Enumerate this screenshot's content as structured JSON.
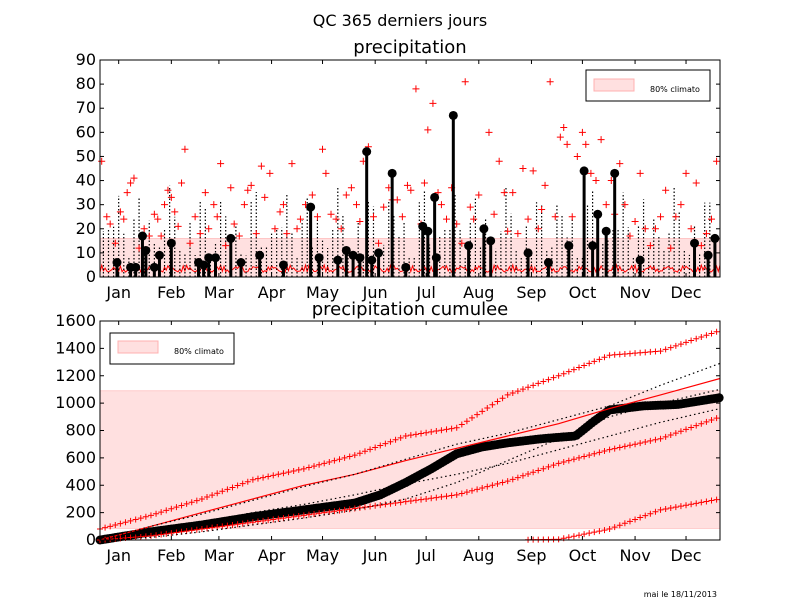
{
  "suptitle": "QC 365 derniers jours",
  "footer": "mai le 18/11/2013",
  "colors": {
    "climato_band": "#ffe0e0",
    "climato_edge": "#ffb0b0",
    "observed": "#000000",
    "climato": "#ff0000"
  },
  "chart_data": [
    {
      "type": "bar",
      "title": "precipitation",
      "xlabel": "",
      "ylabel": "",
      "xlim": [
        0,
        365
      ],
      "ylim": [
        0,
        90
      ],
      "yticks": [
        0,
        10,
        20,
        30,
        40,
        50,
        60,
        70,
        80,
        90
      ],
      "month_labels": [
        "Jan",
        "Feb",
        "Mar",
        "Apr",
        "May",
        "Jun",
        "Jul",
        "Aug",
        "Sep",
        "Oct",
        "Nov",
        "Dec"
      ],
      "month_days": [
        11,
        42,
        70,
        101,
        131,
        162,
        192,
        223,
        254,
        284,
        315,
        345
      ],
      "legend": {
        "label": "80% climato",
        "position": "upper-right"
      },
      "band_80pct": [
        0,
        16
      ],
      "series": [
        {
          "marker": "circle",
          "x": [
            10,
            18,
            21,
            25,
            27,
            32,
            35,
            42,
            58,
            61,
            64,
            68,
            77,
            83,
            94,
            108,
            124,
            129,
            140,
            145,
            149,
            153,
            157,
            160,
            164,
            172,
            180,
            190,
            193,
            197,
            198,
            208,
            217,
            226,
            230,
            252,
            264,
            276,
            285,
            290,
            293,
            298,
            303,
            318,
            350,
            358,
            362
          ],
          "y": [
            6,
            4,
            4,
            17,
            11,
            4,
            9,
            14,
            6,
            5,
            8,
            8,
            16,
            6,
            9,
            5,
            29,
            8,
            7,
            11,
            9,
            8,
            52,
            7,
            10,
            43,
            4,
            21,
            19,
            33,
            8,
            67,
            13,
            20,
            15,
            10,
            6,
            13,
            44,
            13,
            26,
            19,
            43,
            7,
            14,
            9,
            16
          ]
        }
      ],
      "climato_pluses": [
        [
          1,
          48
        ],
        [
          4,
          25
        ],
        [
          6,
          22
        ],
        [
          9,
          14
        ],
        [
          12,
          27
        ],
        [
          14,
          24
        ],
        [
          16,
          35
        ],
        [
          18,
          39
        ],
        [
          20,
          41
        ],
        [
          23,
          12
        ],
        [
          26,
          20
        ],
        [
          29,
          17
        ],
        [
          32,
          26
        ],
        [
          34,
          24
        ],
        [
          36,
          17
        ],
        [
          38,
          30
        ],
        [
          40,
          36
        ],
        [
          42,
          33
        ],
        [
          44,
          27
        ],
        [
          46,
          21
        ],
        [
          48,
          39
        ],
        [
          50,
          53
        ],
        [
          53,
          14
        ],
        [
          56,
          25
        ],
        [
          59,
          18
        ],
        [
          62,
          35
        ],
        [
          64,
          20
        ],
        [
          67,
          30
        ],
        [
          69,
          25
        ],
        [
          71,
          47
        ],
        [
          74,
          13
        ],
        [
          77,
          37
        ],
        [
          79,
          22
        ],
        [
          82,
          17
        ],
        [
          85,
          30
        ],
        [
          87,
          36
        ],
        [
          89,
          38
        ],
        [
          92,
          18
        ],
        [
          95,
          46
        ],
        [
          97,
          33
        ],
        [
          100,
          43
        ],
        [
          103,
          20
        ],
        [
          106,
          27
        ],
        [
          108,
          30
        ],
        [
          110,
          18
        ],
        [
          113,
          47
        ],
        [
          116,
          20
        ],
        [
          118,
          24
        ],
        [
          121,
          30
        ],
        [
          125,
          34
        ],
        [
          128,
          25
        ],
        [
          131,
          53
        ],
        [
          133,
          43
        ],
        [
          136,
          26
        ],
        [
          139,
          24
        ],
        [
          142,
          20
        ],
        [
          145,
          34
        ],
        [
          148,
          37
        ],
        [
          151,
          30
        ],
        [
          153,
          23
        ],
        [
          155,
          48
        ],
        [
          158,
          54
        ],
        [
          161,
          25
        ],
        [
          164,
          14
        ],
        [
          167,
          29
        ],
        [
          170,
          37
        ],
        [
          172,
          32
        ],
        [
          175,
          32
        ],
        [
          178,
          25
        ],
        [
          181,
          38
        ],
        [
          183,
          36
        ],
        [
          186,
          78
        ],
        [
          189,
          22
        ],
        [
          191,
          39
        ],
        [
          193,
          61
        ],
        [
          196,
          72
        ],
        [
          199,
          35
        ],
        [
          201,
          30
        ],
        [
          204,
          24
        ],
        [
          207,
          37
        ],
        [
          210,
          22
        ],
        [
          213,
          14
        ],
        [
          215,
          81
        ],
        [
          218,
          29
        ],
        [
          220,
          24
        ],
        [
          223,
          34
        ],
        [
          226,
          20
        ],
        [
          229,
          60
        ],
        [
          232,
          26
        ],
        [
          235,
          48
        ],
        [
          238,
          35
        ],
        [
          240,
          19
        ],
        [
          243,
          35
        ],
        [
          246,
          18
        ],
        [
          249,
          45
        ],
        [
          252,
          24
        ],
        [
          255,
          44
        ],
        [
          258,
          20
        ],
        [
          260,
          28
        ],
        [
          262,
          38
        ],
        [
          265,
          81
        ],
        [
          268,
          25
        ],
        [
          271,
          58
        ],
        [
          273,
          62
        ],
        [
          275,
          55
        ],
        [
          278,
          25
        ],
        [
          281,
          50
        ],
        [
          284,
          60
        ],
        [
          286,
          55
        ],
        [
          289,
          43
        ],
        [
          292,
          40
        ],
        [
          295,
          57
        ],
        [
          298,
          30
        ],
        [
          301,
          40
        ],
        [
          303,
          26
        ],
        [
          306,
          47
        ],
        [
          309,
          30
        ],
        [
          312,
          17
        ],
        [
          315,
          23
        ],
        [
          318,
          43
        ],
        [
          321,
          20
        ],
        [
          324,
          13
        ],
        [
          327,
          20
        ],
        [
          330,
          25
        ],
        [
          333,
          36
        ],
        [
          336,
          12
        ],
        [
          339,
          25
        ],
        [
          342,
          30
        ],
        [
          345,
          43
        ],
        [
          348,
          20
        ],
        [
          351,
          39
        ],
        [
          354,
          13
        ],
        [
          357,
          18
        ],
        [
          360,
          24
        ],
        [
          363,
          48
        ]
      ]
    },
    {
      "type": "line",
      "title": "precipitation cumulee",
      "xlabel": "",
      "ylabel": "",
      "xlim": [
        0,
        365
      ],
      "ylim": [
        0,
        1600
      ],
      "yticks": [
        0,
        200,
        400,
        600,
        800,
        1000,
        1200,
        1400,
        1600
      ],
      "month_labels": [
        "Jan",
        "Feb",
        "Mar",
        "Apr",
        "May",
        "Jun",
        "Jul",
        "Aug",
        "Sep",
        "Oct",
        "Nov",
        "Dec"
      ],
      "month_days": [
        11,
        42,
        70,
        101,
        131,
        162,
        192,
        223,
        254,
        284,
        315,
        345
      ],
      "legend": {
        "label": "80% climato",
        "position": "upper-left"
      },
      "band_80pct": [
        85,
        1090
      ],
      "series": [
        {
          "style": "observed-circles",
          "x": [
            0,
            30,
            60,
            90,
            120,
            150,
            165,
            180,
            195,
            210,
            225,
            240,
            260,
            280,
            290,
            300,
            320,
            340,
            365
          ],
          "y": [
            0,
            60,
            110,
            170,
            220,
            270,
            330,
            420,
            520,
            630,
            680,
            710,
            740,
            760,
            860,
            950,
            980,
            990,
            1040
          ]
        },
        {
          "style": "climato-mean",
          "x": [
            0,
            30,
            60,
            90,
            120,
            150,
            180,
            210,
            240,
            270,
            300,
            330,
            365
          ],
          "y": [
            0,
            100,
            200,
            300,
            400,
            480,
            580,
            670,
            760,
            850,
            960,
            1060,
            1180
          ]
        },
        {
          "style": "climato-max-plus",
          "x": [
            0,
            30,
            60,
            90,
            120,
            150,
            180,
            210,
            240,
            270,
            300,
            330,
            365
          ],
          "y": [
            80,
            180,
            300,
            440,
            520,
            620,
            760,
            820,
            1060,
            1200,
            1350,
            1380,
            1530
          ]
        },
        {
          "style": "climato-lowmid-plus",
          "x": [
            0,
            30,
            60,
            90,
            120,
            150,
            180,
            210,
            240,
            270,
            300,
            330,
            365
          ],
          "y": [
            0,
            30,
            80,
            130,
            180,
            230,
            280,
            330,
            430,
            560,
            660,
            740,
            900
          ]
        },
        {
          "style": "climato-min-plus",
          "x": [
            0,
            30,
            60,
            90,
            120,
            150,
            180,
            210,
            240,
            270,
            300,
            330,
            365
          ],
          "y": [
            0,
            0,
            0,
            0,
            0,
            0,
            0,
            0,
            0,
            5,
            80,
            220,
            300
          ]
        },
        {
          "style": "dotted-1",
          "x": [
            0,
            30,
            60,
            90,
            120,
            150,
            180,
            210,
            240,
            270,
            300,
            330,
            365
          ],
          "y": [
            0,
            100,
            190,
            290,
            390,
            480,
            590,
            700,
            780,
            880,
            980,
            1130,
            1290
          ]
        },
        {
          "style": "dotted-2",
          "x": [
            0,
            30,
            60,
            90,
            120,
            150,
            180,
            210,
            240,
            270,
            300,
            330,
            365
          ],
          "y": [
            0,
            60,
            130,
            200,
            260,
            330,
            410,
            480,
            560,
            660,
            760,
            860,
            960
          ]
        },
        {
          "style": "dotted-3",
          "x": [
            0,
            30,
            60,
            90,
            120,
            150,
            180,
            210,
            240,
            270,
            300,
            330,
            365
          ],
          "y": [
            0,
            20,
            60,
            110,
            160,
            220,
            300,
            420,
            580,
            740,
            900,
            1000,
            1100
          ]
        }
      ]
    }
  ]
}
